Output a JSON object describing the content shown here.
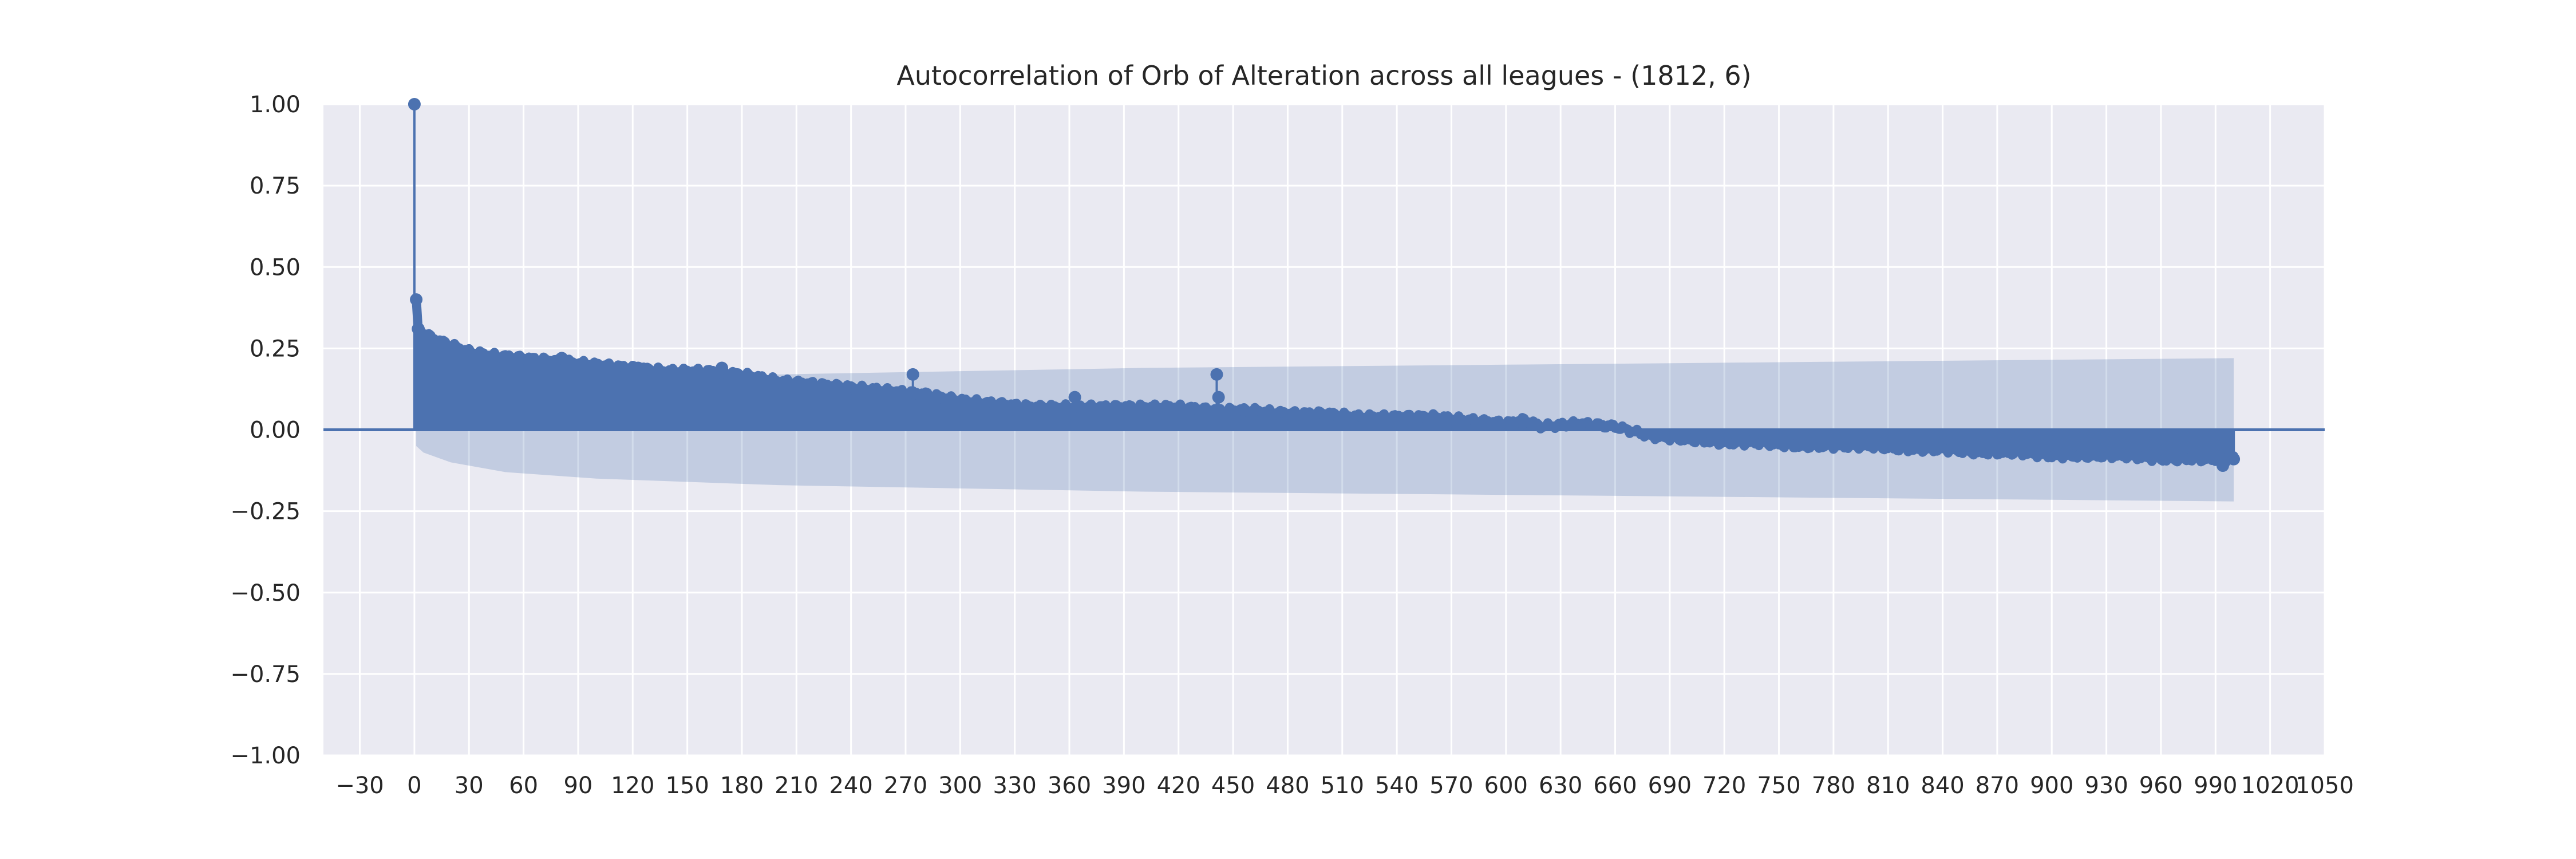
{
  "chart_data": {
    "type": "scatter",
    "subtype": "autocorrelation-stem",
    "title": "Autocorrelation of Orb of Alteration across all leagues - (1812, 6)",
    "xlabel": "",
    "ylabel": "",
    "xlim": [
      -50,
      1050
    ],
    "ylim": [
      -1.0,
      1.0
    ],
    "xticks": [
      -30,
      0,
      30,
      60,
      90,
      120,
      150,
      180,
      210,
      240,
      270,
      300,
      330,
      360,
      390,
      420,
      450,
      480,
      510,
      540,
      570,
      600,
      630,
      660,
      690,
      720,
      750,
      780,
      810,
      840,
      870,
      900,
      930,
      960,
      990,
      1020,
      1050
    ],
    "yticks": [
      1.0,
      0.75,
      0.5,
      0.25,
      0.0,
      -0.25,
      -0.5,
      -0.75,
      -1.0
    ],
    "ytick_labels": [
      "1.00",
      "0.75",
      "0.50",
      "0.25",
      "0.00",
      "−0.25",
      "−0.50",
      "−0.75",
      "−1.00"
    ],
    "grid": true,
    "colors": {
      "axes_background": "#eaeaf2",
      "grid": "#ffffff",
      "series": "#4c72b0",
      "confidence_band": "#4c72b0"
    },
    "lag_range": [
      0,
      1000
    ],
    "acf_profile": {
      "x": [
        0,
        1,
        2,
        5,
        10,
        20,
        30,
        40,
        60,
        80,
        100,
        120,
        140,
        160,
        180,
        200,
        220,
        240,
        260,
        280,
        300,
        320,
        340,
        360,
        380,
        400,
        420,
        440,
        460,
        480,
        500,
        520,
        540,
        560,
        580,
        600,
        610,
        620,
        640,
        660,
        680,
        700,
        720,
        740,
        760,
        780,
        800,
        820,
        840,
        860,
        880,
        900,
        920,
        940,
        960,
        980,
        1000
      ],
      "y": [
        1.0,
        0.4,
        0.31,
        0.3,
        0.28,
        0.26,
        0.24,
        0.23,
        0.22,
        0.21,
        0.2,
        0.19,
        0.18,
        0.18,
        0.17,
        0.15,
        0.14,
        0.13,
        0.12,
        0.11,
        0.09,
        0.08,
        0.07,
        0.07,
        0.07,
        0.07,
        0.07,
        0.06,
        0.06,
        0.05,
        0.05,
        0.04,
        0.04,
        0.04,
        0.03,
        0.02,
        0.03,
        0.01,
        0.02,
        0.01,
        -0.02,
        -0.03,
        -0.04,
        -0.04,
        -0.05,
        -0.05,
        -0.05,
        -0.06,
        -0.06,
        -0.07,
        -0.07,
        -0.08,
        -0.08,
        -0.08,
        -0.09,
        -0.09,
        -0.09
      ]
    },
    "notable_points": {
      "x": [
        0,
        1,
        2,
        81,
        123,
        169,
        274,
        363,
        441,
        442,
        994,
        1000
      ],
      "y": [
        1.0,
        0.4,
        0.31,
        0.22,
        0.19,
        0.19,
        0.17,
        0.1,
        0.17,
        0.1,
        -0.11,
        -0.09
      ]
    },
    "confidence_interval": {
      "x": [
        1,
        5,
        20,
        50,
        100,
        200,
        300,
        400,
        500,
        600,
        700,
        800,
        900,
        1000
      ],
      "upper": [
        0.05,
        0.07,
        0.1,
        0.13,
        0.15,
        0.17,
        0.18,
        0.19,
        0.195,
        0.2,
        0.205,
        0.21,
        0.215,
        0.22
      ],
      "lower": [
        -0.05,
        -0.07,
        -0.1,
        -0.13,
        -0.15,
        -0.17,
        -0.18,
        -0.19,
        -0.195,
        -0.2,
        -0.205,
        -0.21,
        -0.215,
        -0.22
      ]
    }
  }
}
